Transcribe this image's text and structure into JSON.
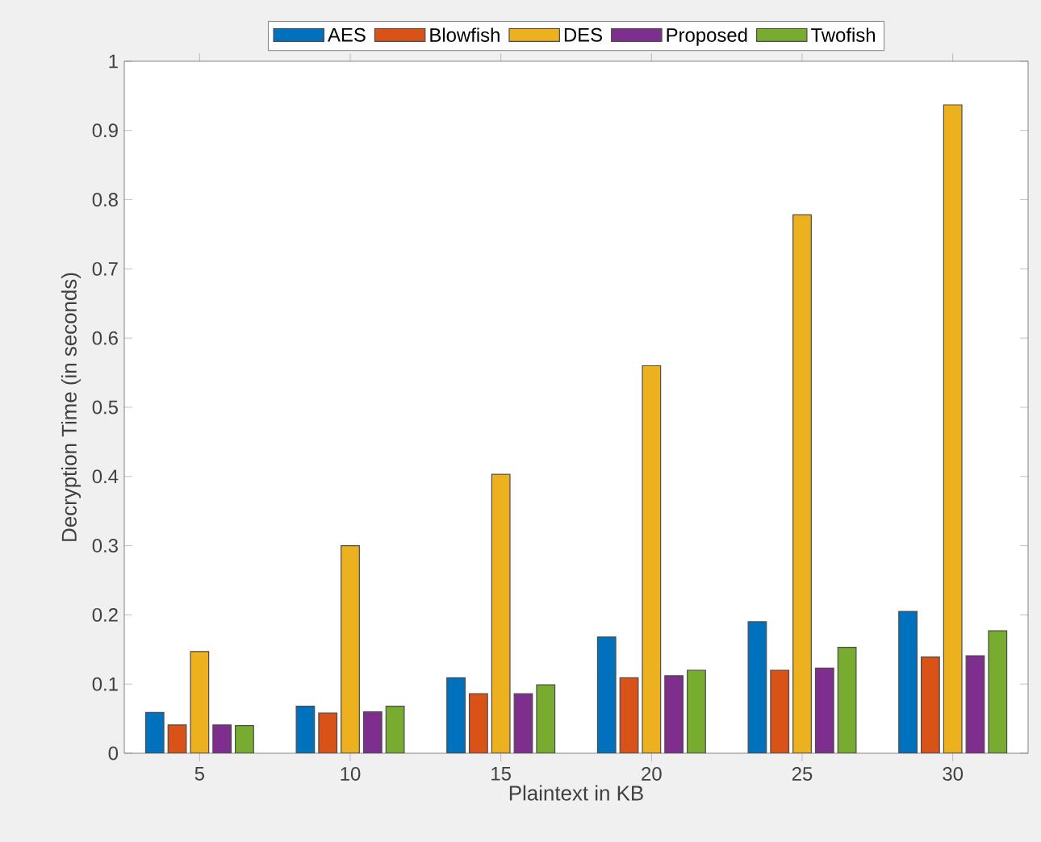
{
  "chart_data": {
    "type": "bar",
    "xlabel": "Plaintext in KB",
    "ylabel": "Decryption Time (in seconds)",
    "categories": [
      "5",
      "10",
      "15",
      "20",
      "25",
      "30"
    ],
    "series": [
      {
        "name": "AES",
        "color": "#0072bd",
        "values": [
          0.059,
          0.068,
          0.109,
          0.168,
          0.19,
          0.205
        ]
      },
      {
        "name": "Blowfish",
        "color": "#d95319",
        "values": [
          0.041,
          0.058,
          0.086,
          0.109,
          0.12,
          0.139
        ]
      },
      {
        "name": "DES",
        "color": "#edb120",
        "values": [
          0.147,
          0.3,
          0.403,
          0.56,
          0.778,
          0.937
        ]
      },
      {
        "name": "Proposed",
        "color": "#7e2f8e",
        "values": [
          0.041,
          0.06,
          0.086,
          0.112,
          0.123,
          0.141
        ]
      },
      {
        "name": "Twofish",
        "color": "#77ac30",
        "values": [
          0.04,
          0.068,
          0.099,
          0.12,
          0.153,
          0.177
        ]
      }
    ],
    "ylim": [
      0,
      1
    ],
    "yticks": [
      0,
      0.1,
      0.2,
      0.3,
      0.4,
      0.5,
      0.6,
      0.7,
      0.8,
      0.9,
      1
    ],
    "legend": "top",
    "grid": false
  }
}
